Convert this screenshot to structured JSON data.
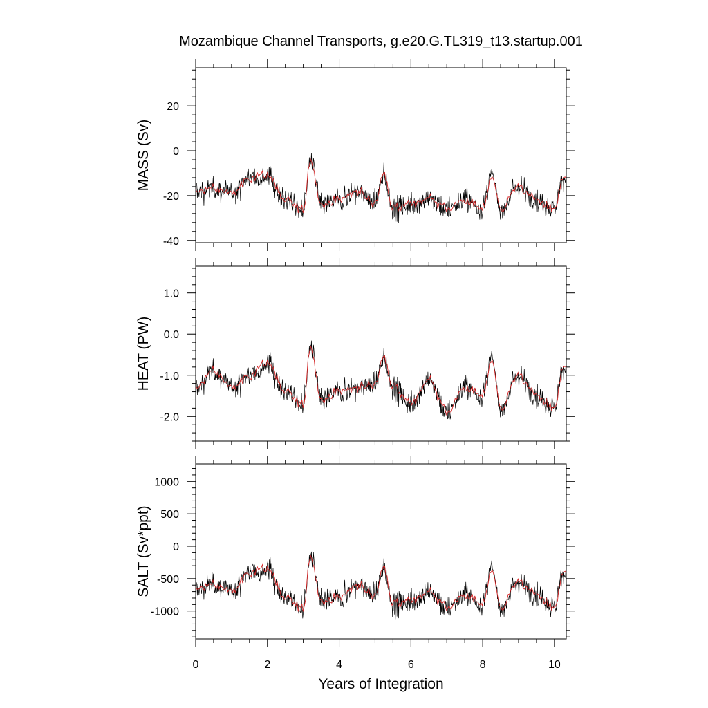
{
  "chart_data": {
    "type": "line",
    "title": "Mozambique Channel Transports, g.e20.G.TL319_t13.startup.001",
    "xlabel": "Years of Integration",
    "xlim": [
      0,
      10.33
    ],
    "xticks": [
      "0",
      "2",
      "4",
      "6",
      "8",
      "10"
    ],
    "series_styles": {
      "raw": "#000000",
      "smoothed": "#d62728"
    },
    "panels": [
      {
        "ylabel": "MASS (Sv)",
        "ylim": [
          -41,
          37
        ],
        "yticks": [
          "-40",
          "-20",
          "0",
          "20"
        ],
        "x": [
          0,
          0.5,
          1,
          1.5,
          2,
          2.5,
          3,
          3.2,
          3.5,
          4,
          4.5,
          5,
          5.25,
          5.5,
          6,
          6.5,
          7,
          7.5,
          8,
          8.25,
          8.5,
          9,
          9.5,
          10,
          10.25
        ],
        "values": [
          -18,
          -17,
          -19,
          -12,
          -11,
          -22,
          -26,
          -4,
          -24,
          -22,
          -18,
          -23,
          -11,
          -26,
          -24,
          -21,
          -26,
          -22,
          -26,
          -11,
          -26,
          -16,
          -22,
          -26,
          -12
        ]
      },
      {
        "ylabel": "HEAT (PW)",
        "ylim": [
          -2.6,
          1.65
        ],
        "yticks": [
          "-2.0",
          "-1.0",
          "0.0",
          "1.0"
        ],
        "x": [
          0,
          0.5,
          1,
          1.5,
          2,
          2.5,
          3,
          3.2,
          3.5,
          4,
          4.5,
          5,
          5.25,
          5.5,
          6,
          6.5,
          7,
          7.5,
          8,
          8.25,
          8.5,
          9,
          9.5,
          10,
          10.25
        ],
        "values": [
          -1.3,
          -0.9,
          -1.3,
          -1.0,
          -0.7,
          -1.4,
          -1.7,
          -0.3,
          -1.6,
          -1.4,
          -1.3,
          -1.2,
          -0.6,
          -1.3,
          -1.7,
          -1.1,
          -1.9,
          -1.3,
          -1.5,
          -0.6,
          -1.8,
          -1.0,
          -1.5,
          -1.8,
          -0.8
        ]
      },
      {
        "ylabel": "SALT (Sv*ppt)",
        "ylim": [
          -1430,
          1270
        ],
        "yticks": [
          "-1000",
          "-500",
          "0",
          "500",
          "1000"
        ],
        "x": [
          0,
          0.5,
          1,
          1.5,
          2,
          2.5,
          3,
          3.2,
          3.5,
          4,
          4.5,
          5,
          5.25,
          5.5,
          6,
          6.5,
          7,
          7.5,
          8,
          8.25,
          8.5,
          9,
          9.5,
          10,
          10.25
        ],
        "values": [
          -650,
          -600,
          -700,
          -400,
          -350,
          -800,
          -950,
          -150,
          -850,
          -800,
          -600,
          -750,
          -350,
          -900,
          -850,
          -700,
          -950,
          -750,
          -900,
          -350,
          -950,
          -550,
          -750,
          -950,
          -400
        ]
      }
    ]
  }
}
